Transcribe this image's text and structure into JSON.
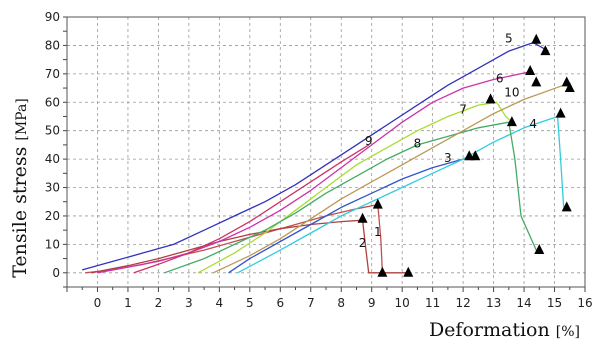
{
  "chart_data": {
    "type": "line",
    "xlabel": "Deformation",
    "xunit": "[%]",
    "ylabel": "Tensile stress",
    "yunit": "[MPa]",
    "xlim": [
      -1,
      16
    ],
    "ylim": [
      -5,
      90
    ],
    "xticks": [
      "0",
      "1",
      "2",
      "3",
      "4",
      "5",
      "6",
      "7",
      "8",
      "9",
      "10",
      "11",
      "12",
      "13",
      "14",
      "15",
      "16"
    ],
    "yticks": [
      "0",
      "10",
      "20",
      "30",
      "40",
      "50",
      "60",
      "70",
      "80",
      "90"
    ],
    "grid": true,
    "marker_color": "#000000",
    "series": [
      {
        "label": "1",
        "color": "#c05050",
        "points": [
          [
            -0.4,
            0
          ],
          [
            0.5,
            1
          ],
          [
            1.5,
            3
          ],
          [
            2.5,
            5.5
          ],
          [
            3.5,
            8
          ],
          [
            4.5,
            11
          ],
          [
            5.5,
            14
          ],
          [
            6.5,
            17
          ],
          [
            7.5,
            20
          ],
          [
            8.5,
            22.5
          ],
          [
            9.2,
            24
          ],
          [
            9.3,
            12
          ],
          [
            9.35,
            0
          ]
        ],
        "markers": [
          [
            9.2,
            24
          ],
          [
            9.35,
            0
          ]
        ],
        "label_at": [
          9.2,
          13
        ]
      },
      {
        "label": "2",
        "color": "#b04040",
        "points": [
          [
            -0.2,
            0
          ],
          [
            1,
            2.5
          ],
          [
            2,
            5
          ],
          [
            3,
            8
          ],
          [
            4,
            11
          ],
          [
            5,
            13.5
          ],
          [
            6,
            15.5
          ],
          [
            7,
            17
          ],
          [
            8,
            18
          ],
          [
            8.7,
            18.5
          ],
          [
            8.8,
            9
          ],
          [
            8.9,
            0
          ],
          [
            10.2,
            0
          ]
        ],
        "markers": [
          [
            8.7,
            19
          ],
          [
            10.2,
            0
          ]
        ],
        "label_at": [
          8.7,
          9
        ]
      },
      {
        "label": "3",
        "color": "#3355cc",
        "points": [
          [
            4.3,
            0
          ],
          [
            5,
            5
          ],
          [
            6,
            11
          ],
          [
            7,
            17
          ],
          [
            8,
            23
          ],
          [
            9,
            28
          ],
          [
            10,
            33
          ],
          [
            11,
            37
          ],
          [
            12,
            40
          ],
          [
            12.4,
            41
          ]
        ],
        "markers": [
          [
            12.4,
            41
          ]
        ],
        "label_at": [
          11.5,
          39
        ]
      },
      {
        "label": "4",
        "color": "#33ccdd",
        "points": [
          [
            4.6,
            0
          ],
          [
            6,
            8
          ],
          [
            7,
            14
          ],
          [
            8,
            20
          ],
          [
            9,
            25
          ],
          [
            10,
            30
          ],
          [
            11,
            35
          ],
          [
            12,
            40
          ],
          [
            13,
            46
          ],
          [
            14,
            51
          ],
          [
            15.1,
            55
          ],
          [
            15.2,
            40
          ],
          [
            15.3,
            23
          ]
        ],
        "markers": [
          [
            15.2,
            56
          ],
          [
            15.4,
            23
          ]
        ],
        "label_at": [
          14.3,
          51
        ]
      },
      {
        "label": "5",
        "color": "#3333bb",
        "points": [
          [
            -0.5,
            1
          ],
          [
            0.5,
            4
          ],
          [
            1.5,
            7
          ],
          [
            2.5,
            10
          ],
          [
            3.5,
            15
          ],
          [
            4.5,
            20
          ],
          [
            5.5,
            25
          ],
          [
            6.5,
            31
          ],
          [
            7.5,
            38
          ],
          [
            8.5,
            45
          ],
          [
            9.5,
            52
          ],
          [
            10.5,
            59
          ],
          [
            11.5,
            66
          ],
          [
            12.5,
            72
          ],
          [
            13.5,
            78
          ],
          [
            14.3,
            81
          ],
          [
            14.8,
            78
          ]
        ],
        "markers": [
          [
            14.4,
            82
          ],
          [
            14.7,
            78
          ]
        ],
        "label_at": [
          13.5,
          81
        ]
      },
      {
        "label": "6",
        "color": "#cc33aa",
        "points": [
          [
            0,
            0
          ],
          [
            1,
            2
          ],
          [
            2,
            4
          ],
          [
            3,
            7
          ],
          [
            4,
            11
          ],
          [
            5,
            16
          ],
          [
            6,
            22
          ],
          [
            7,
            29
          ],
          [
            8,
            37
          ],
          [
            9,
            45
          ],
          [
            10,
            53
          ],
          [
            11,
            60
          ],
          [
            12,
            65
          ],
          [
            13,
            68
          ],
          [
            14.1,
            70.5
          ]
        ],
        "markers": [
          [
            14.2,
            71
          ],
          [
            14.4,
            67
          ]
        ],
        "label_at": [
          13.2,
          67
        ]
      },
      {
        "label": "7",
        "color": "#aadd33",
        "points": [
          [
            3.3,
            0
          ],
          [
            4.5,
            7
          ],
          [
            5.5,
            14
          ],
          [
            6.5,
            22
          ],
          [
            7.5,
            30
          ],
          [
            8.5,
            38
          ],
          [
            9.5,
            44
          ],
          [
            10.5,
            50
          ],
          [
            11.5,
            55
          ],
          [
            12.5,
            59
          ],
          [
            13.1,
            60
          ],
          [
            13.4,
            55
          ],
          [
            13.6,
            53
          ]
        ],
        "markers": [
          [
            12.9,
            61
          ]
        ],
        "label_at": [
          12.0,
          56
        ]
      },
      {
        "label": "8",
        "color": "#44aa66",
        "points": [
          [
            2.2,
            0
          ],
          [
            3.5,
            5
          ],
          [
            4.5,
            10
          ],
          [
            5.5,
            15
          ],
          [
            6.5,
            21
          ],
          [
            7.5,
            28
          ],
          [
            8.5,
            34
          ],
          [
            9.5,
            40
          ],
          [
            10.5,
            45
          ],
          [
            11.5,
            48
          ],
          [
            12.5,
            51
          ],
          [
            13.5,
            53
          ],
          [
            13.7,
            40
          ],
          [
            13.9,
            20
          ],
          [
            14.4,
            8
          ]
        ],
        "markers": [
          [
            13.6,
            53
          ],
          [
            14.5,
            8
          ],
          [
            12.2,
            41
          ]
        ],
        "label_at": [
          10.5,
          44
        ]
      },
      {
        "label": "9",
        "color": "#cc3366",
        "points": [
          [
            1.2,
            0
          ],
          [
            2,
            3
          ],
          [
            3,
            7
          ],
          [
            4,
            12
          ],
          [
            5,
            18
          ],
          [
            6,
            25
          ],
          [
            7,
            32
          ],
          [
            8,
            39
          ],
          [
            8.9,
            45
          ]
        ],
        "markers": [],
        "label_at": [
          8.9,
          45
        ]
      },
      {
        "label": "10",
        "color": "#bb9955",
        "points": [
          [
            3.8,
            0
          ],
          [
            5,
            6
          ],
          [
            6,
            12
          ],
          [
            7,
            19
          ],
          [
            8,
            26
          ],
          [
            9,
            32
          ],
          [
            10,
            38
          ],
          [
            11,
            44
          ],
          [
            12,
            50
          ],
          [
            13,
            56
          ],
          [
            14,
            61
          ],
          [
            15.3,
            66
          ]
        ],
        "markers": [
          [
            15.4,
            67
          ],
          [
            15.5,
            65
          ]
        ],
        "label_at": [
          13.6,
          62
        ]
      }
    ]
  }
}
